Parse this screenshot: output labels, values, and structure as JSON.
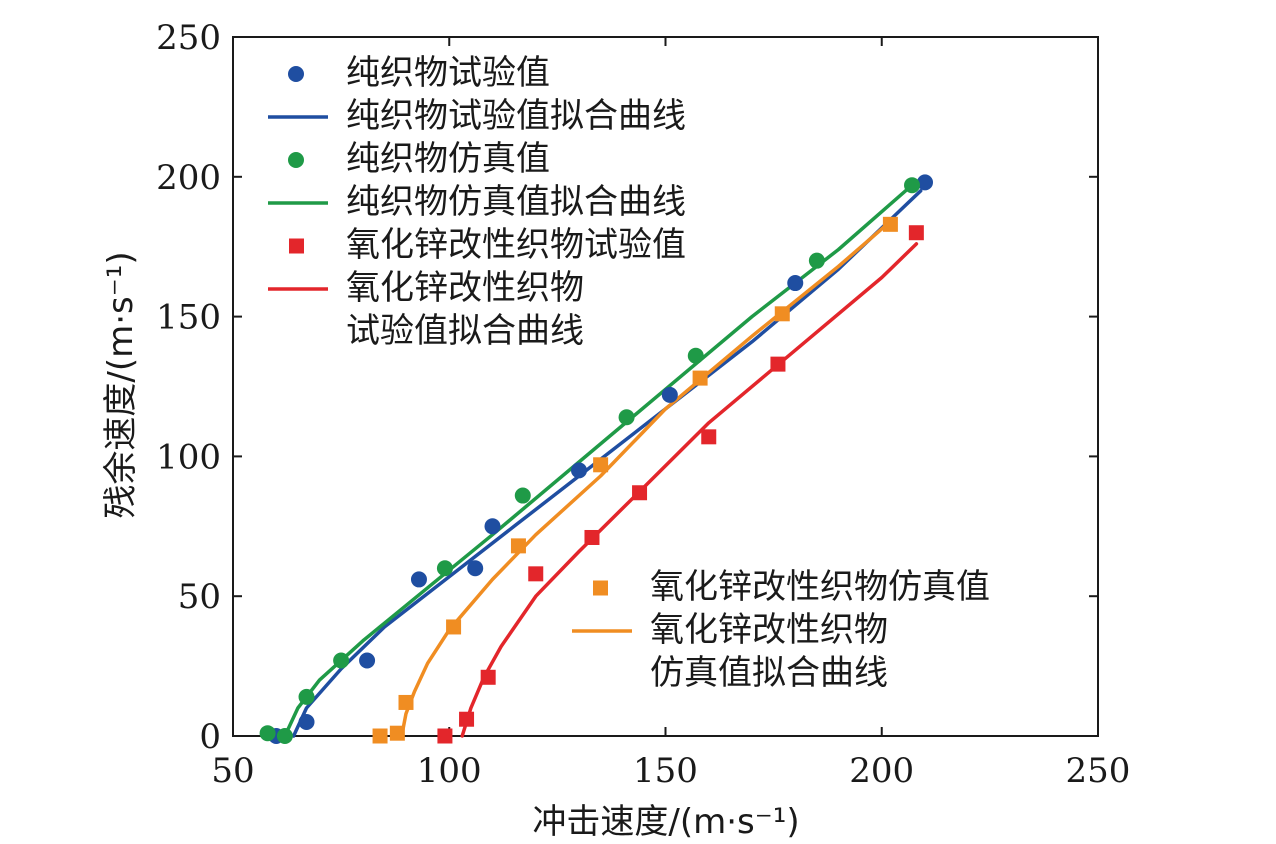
{
  "chart_data": {
    "type": "scatter",
    "xlabel": "冲击速度/(m·s⁻¹)",
    "ylabel": "残余速度/(m·s⁻¹)",
    "xlim": [
      50,
      250
    ],
    "ylim": [
      0,
      250
    ],
    "x_ticks": [
      "50",
      "100",
      "150",
      "200",
      "250"
    ],
    "y_ticks": [
      "0",
      "50",
      "100",
      "150",
      "200",
      "250"
    ],
    "grid": false,
    "legend": [
      {
        "label": "纯织物试验值",
        "kind": "marker",
        "shape": "circle",
        "color": "#1f4ea1",
        "position": "top-left"
      },
      {
        "label": "纯织物试验值拟合曲线",
        "kind": "line",
        "color": "#1f4ea1",
        "position": "top-left"
      },
      {
        "label": "纯织物仿真值",
        "kind": "marker",
        "shape": "circle",
        "color": "#1f9a47",
        "position": "top-left"
      },
      {
        "label": "纯织物仿真值拟合曲线",
        "kind": "line",
        "color": "#1f9a47",
        "position": "top-left"
      },
      {
        "label": "氧化锌改性织物试验值",
        "kind": "marker",
        "shape": "square",
        "color": "#e3262b",
        "position": "top-left"
      },
      {
        "label": "氧化锌改性织物\n试验值拟合曲线",
        "kind": "line",
        "color": "#e3262b",
        "position": "top-left"
      },
      {
        "label": "氧化锌改性织物仿真值",
        "kind": "marker",
        "shape": "square",
        "color": "#f08d22",
        "position": "bottom-right"
      },
      {
        "label": "氧化锌改性织物\n仿真值拟合曲线",
        "kind": "line",
        "color": "#f08d22",
        "position": "bottom-right"
      }
    ],
    "series": [
      {
        "role": "points",
        "shape": "circle",
        "color": "#1f4ea1",
        "x": [
          60,
          67,
          81,
          93,
          110,
          106,
          130,
          151,
          180,
          210
        ],
        "y": [
          0,
          5,
          27,
          56,
          75,
          60,
          95,
          122,
          162,
          198
        ]
      },
      {
        "role": "line",
        "color": "#1f4ea1",
        "x": [
          64,
          67,
          75,
          85,
          100,
          115,
          130,
          150,
          170,
          190,
          209
        ],
        "y": [
          0,
          10,
          24,
          39,
          57,
          75,
          93,
          117,
          141,
          167,
          195
        ]
      },
      {
        "role": "points",
        "shape": "circle",
        "color": "#1f9a47",
        "x": [
          58,
          62,
          67,
          75,
          99,
          117,
          141,
          157,
          185,
          207
        ],
        "y": [
          1,
          0,
          14,
          27,
          60,
          86,
          114,
          136,
          170,
          197
        ]
      },
      {
        "role": "line",
        "color": "#1f9a47",
        "x": [
          62,
          65,
          70,
          80,
          95,
          110,
          130,
          150,
          170,
          190,
          207
        ],
        "y": [
          0,
          10,
          20,
          34,
          53,
          72,
          98,
          124,
          150,
          174,
          197
        ]
      },
      {
        "role": "points",
        "shape": "square",
        "color": "#e3262b",
        "x": [
          99,
          104,
          109,
          120,
          133,
          144,
          160,
          176,
          208
        ],
        "y": [
          0,
          6,
          21,
          58,
          71,
          87,
          107,
          133,
          180
        ]
      },
      {
        "role": "line",
        "color": "#e3262b",
        "x": [
          103,
          105,
          108,
          112,
          120,
          130,
          145,
          160,
          180,
          200,
          208
        ],
        "y": [
          0,
          10,
          21,
          32,
          50,
          66,
          89,
          112,
          138,
          164,
          176
        ]
      },
      {
        "role": "points",
        "shape": "square",
        "color": "#f08d22",
        "x": [
          84,
          88,
          90,
          101,
          116,
          135,
          158,
          177,
          202
        ],
        "y": [
          0,
          1,
          12,
          39,
          68,
          97,
          128,
          151,
          183
        ]
      },
      {
        "role": "line",
        "color": "#f08d22",
        "x": [
          89,
          90,
          92,
          95,
          100,
          110,
          120,
          135,
          150,
          170,
          190,
          202
        ],
        "y": [
          0,
          8,
          16,
          26,
          38,
          56,
          72,
          93,
          117,
          143,
          168,
          184
        ]
      }
    ]
  }
}
